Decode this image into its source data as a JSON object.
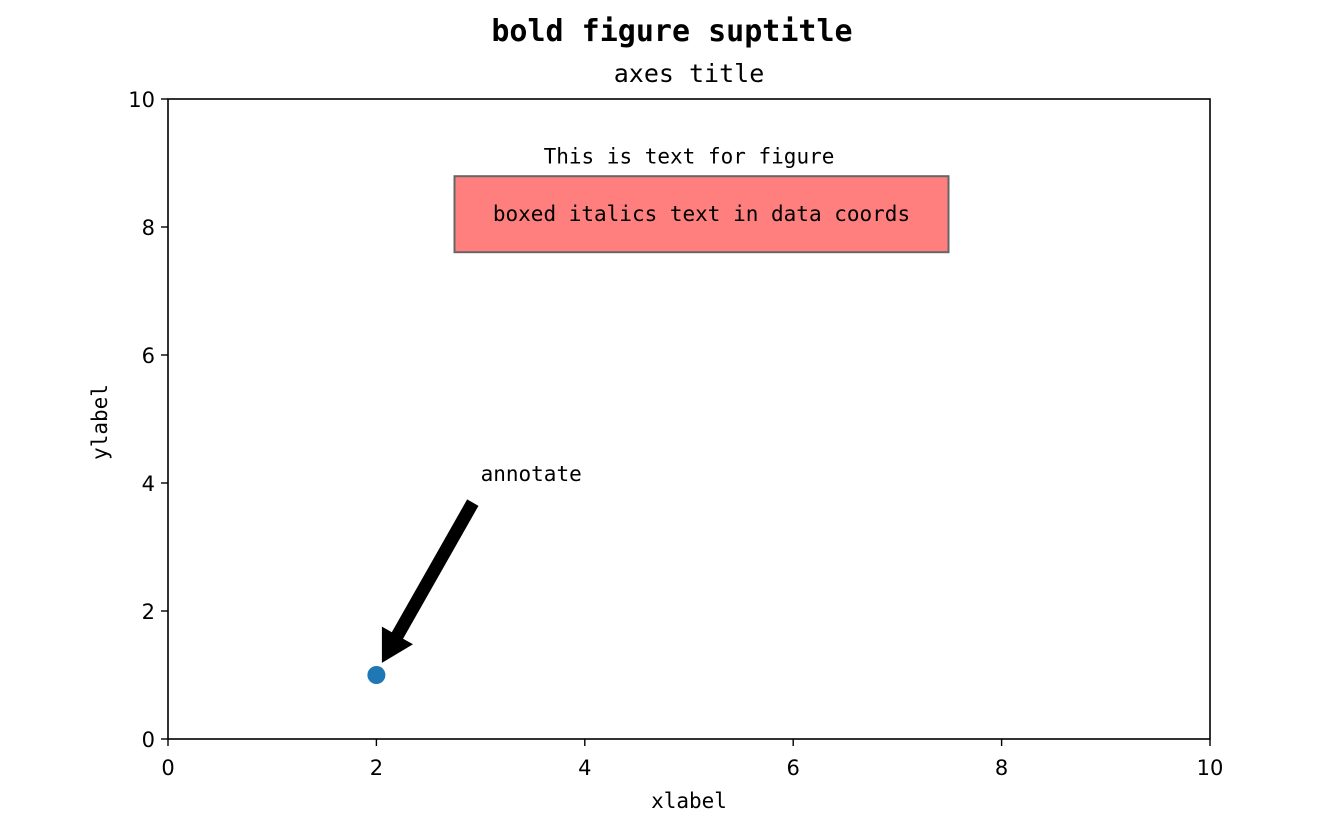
{
  "chart_data": {
    "type": "scatter",
    "suptitle": "bold figure suptitle",
    "title": "axes title",
    "xlabel": "xlabel",
    "ylabel": "ylabel",
    "xlim": [
      0,
      10
    ],
    "ylim": [
      0,
      10
    ],
    "grid": false,
    "xticks": [
      0,
      2,
      4,
      6,
      8,
      10
    ],
    "yticks": [
      0,
      2,
      4,
      6,
      8,
      10
    ],
    "xtick_labels": [
      "0",
      "2",
      "4",
      "6",
      "8",
      "10"
    ],
    "ytick_labels": [
      "0",
      "2",
      "4",
      "6",
      "8",
      "10"
    ],
    "series": [
      {
        "x": [
          2
        ],
        "y": [
          1
        ],
        "color": "#1f77b4"
      }
    ],
    "annotations": [
      {
        "type": "figure_text",
        "text": "This is text for figure",
        "x": 5,
        "y": 9.1
      },
      {
        "type": "boxed_text",
        "text": "boxed italics text in data coords",
        "x": 5.12,
        "y": 8.2,
        "facecolor": "#ff7f7f",
        "edgecolor": "#666666"
      },
      {
        "type": "arrow",
        "text": "annotate",
        "xy": [
          2,
          1
        ],
        "xytext": [
          3,
          4
        ],
        "color": "#000000"
      }
    ]
  }
}
